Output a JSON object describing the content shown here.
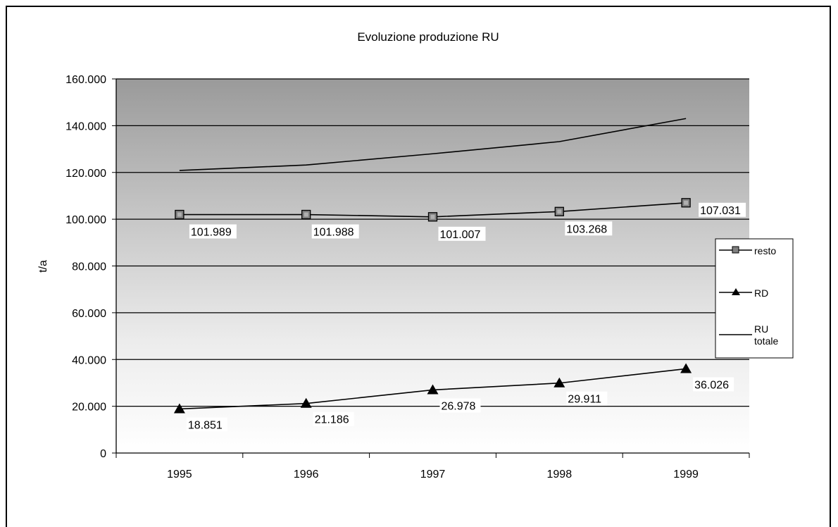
{
  "chart_data": {
    "type": "line",
    "title": "Evoluzione produzione RU",
    "xlabel": "",
    "ylabel": "t/a",
    "categories": [
      "1995",
      "1996",
      "1997",
      "1998",
      "1999"
    ],
    "ylim": [
      0,
      160000
    ],
    "yticks": [
      0,
      20000,
      40000,
      60000,
      80000,
      100000,
      120000,
      140000,
      160000
    ],
    "ytick_labels": [
      "0",
      "20.000",
      "40.000",
      "60.000",
      "80.000",
      "100.000",
      "120.000",
      "140.000",
      "160.000"
    ],
    "grid": "horizontal",
    "legend_position": "right",
    "series": [
      {
        "name": "resto",
        "marker": "square",
        "values": [
          101989,
          101988,
          101007,
          103268,
          107031
        ],
        "labels": [
          "101.989",
          "101.988",
          "101.007",
          "103.268",
          "107.031"
        ]
      },
      {
        "name": "RD",
        "marker": "triangle",
        "values": [
          18851,
          21186,
          26978,
          29911,
          36026
        ],
        "labels": [
          "18.851",
          "21.186",
          "26.978",
          "29.911",
          "36.026"
        ]
      },
      {
        "name": "RU totale",
        "marker": "none",
        "values": [
          120840,
          123174,
          127985,
          133179,
          143057
        ]
      }
    ]
  },
  "legend": {
    "resto": "resto",
    "rd": "RD",
    "ru_line1": "RU",
    "ru_line2": "totale"
  },
  "colors": {
    "plot_top": "#9b9b9b",
    "plot_bottom": "#ffffff",
    "line": "#000000",
    "marker_fill": "#808080"
  }
}
